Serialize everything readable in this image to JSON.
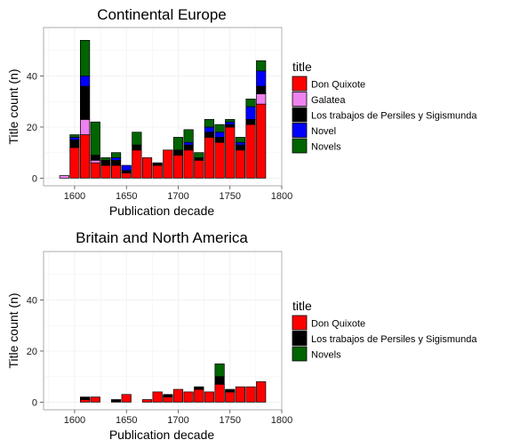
{
  "chart_data": [
    {
      "type": "bar",
      "stacked": true,
      "title": "Continental Europe",
      "xlabel": "Publication decade",
      "ylabel": "Title count (n)",
      "xlim": [
        1570,
        1800
      ],
      "ylim": [
        -3,
        59
      ],
      "xticks": [
        1600,
        1650,
        1700,
        1750,
        1800
      ],
      "yticks": [
        0,
        20,
        40
      ],
      "grid": true,
      "legend_title": "title",
      "legend_position": "right",
      "series_order": [
        "Don Quixote",
        "Galatea",
        "Los trabajos de Persiles y Sigismunda",
        "Novel",
        "Novels"
      ],
      "bar_width": 9,
      "stack_order": [
        "Don Quixote",
        "Galatea",
        "Los trabajos de Persiles y Sigismunda",
        "Novel",
        "Novels"
      ],
      "x": [
        1590,
        1600,
        1610,
        1620,
        1630,
        1640,
        1650,
        1660,
        1670,
        1680,
        1690,
        1700,
        1710,
        1720,
        1730,
        1740,
        1750,
        1760,
        1770,
        1780
      ],
      "series": [
        {
          "name": "Don Quixote",
          "color": "#ff0000",
          "values": [
            0,
            12,
            17,
            6,
            5,
            5,
            2,
            11,
            8,
            5,
            11,
            9,
            11,
            7,
            16,
            14,
            20,
            11,
            21,
            29
          ]
        },
        {
          "name": "Galatea",
          "color": "#ee82ee",
          "values": [
            1,
            0,
            6,
            1,
            0,
            0,
            0,
            0,
            0,
            0,
            0,
            0,
            0,
            0,
            0,
            0,
            0,
            0,
            0,
            4
          ]
        },
        {
          "name": "Los trabajos de Persiles y Sigismunda",
          "color": "#000000",
          "values": [
            0,
            3,
            13,
            2,
            2,
            2,
            1,
            2,
            0,
            1,
            0,
            2,
            2,
            1,
            2,
            2,
            1,
            2,
            2,
            3
          ]
        },
        {
          "name": "Novel",
          "color": "#0000ff",
          "values": [
            0,
            1,
            4,
            0,
            0,
            1,
            2,
            0,
            0,
            0,
            0,
            0,
            1,
            0,
            2,
            2,
            1,
            1,
            5,
            6
          ]
        },
        {
          "name": "Novels",
          "color": "#006400",
          "values": [
            0,
            1,
            14,
            13,
            1,
            2,
            0,
            5,
            0,
            0,
            0,
            5,
            5,
            2,
            3,
            3,
            1,
            2,
            3,
            4
          ]
        }
      ]
    },
    {
      "type": "bar",
      "stacked": true,
      "title": "Britain and North America",
      "xlabel": "Publication decade",
      "ylabel": "Title count (n)",
      "xlim": [
        1570,
        1800
      ],
      "ylim": [
        -3,
        59
      ],
      "xticks": [
        1600,
        1650,
        1700,
        1750,
        1800
      ],
      "yticks": [
        0,
        20,
        40
      ],
      "grid": true,
      "legend_title": "title",
      "legend_position": "right",
      "series_order": [
        "Don Quixote",
        "Los trabajos de Persiles y Sigismunda",
        "Novels"
      ],
      "bar_width": 9,
      "stack_order": [
        "Don Quixote",
        "Los trabajos de Persiles y Sigismunda",
        "Novels"
      ],
      "x": [
        1610,
        1620,
        1640,
        1650,
        1670,
        1680,
        1690,
        1700,
        1710,
        1720,
        1730,
        1740,
        1750,
        1760,
        1770,
        1780
      ],
      "series": [
        {
          "name": "Don Quixote",
          "color": "#ff0000",
          "values": [
            1,
            2,
            0,
            3,
            1,
            4,
            2,
            5,
            4,
            5,
            4,
            7,
            4,
            6,
            6,
            8
          ]
        },
        {
          "name": "Los trabajos de Persiles y Sigismunda",
          "color": "#000000",
          "values": [
            1,
            0,
            1,
            0,
            0,
            0,
            1,
            0,
            0,
            1,
            0,
            3,
            1,
            0,
            0,
            0
          ]
        },
        {
          "name": "Novels",
          "color": "#006400",
          "values": [
            0,
            0,
            0,
            0,
            0,
            0,
            0,
            0,
            0,
            0,
            0,
            5,
            0,
            0,
            0,
            0
          ]
        }
      ]
    }
  ]
}
